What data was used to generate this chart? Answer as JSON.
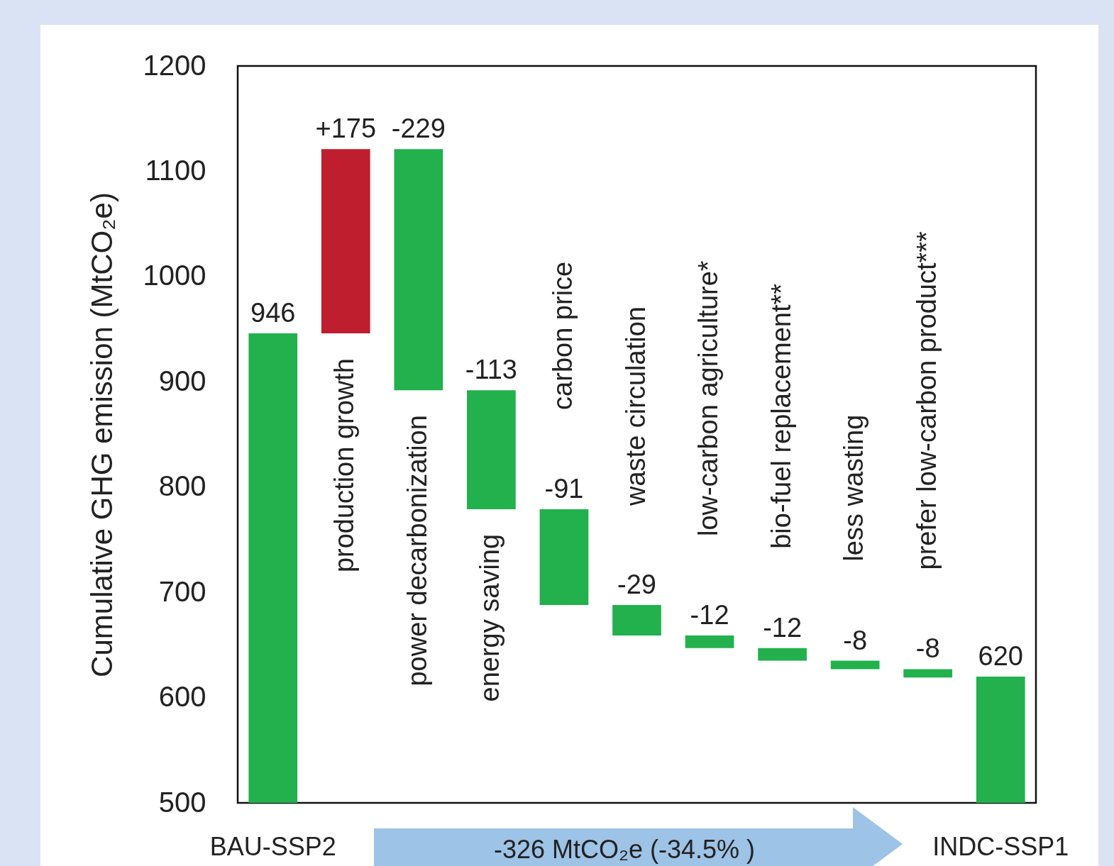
{
  "chart_data": {
    "type": "bar",
    "categories": [
      "BAU-SSP2",
      "production growth",
      "power decarbonization",
      "energy saving",
      "carbon price",
      "waste circulation",
      "low-carbon agriculture*",
      "bio-fuel replacement**",
      "less wasting",
      "prefer low-carbon product***",
      "INDC-SSP1"
    ],
    "values": [
      946,
      175,
      -229,
      -113,
      -91,
      -29,
      -12,
      -12,
      -8,
      -8,
      620
    ],
    "base": [
      null,
      946,
      1121,
      892,
      779,
      688,
      659,
      647,
      635,
      627,
      null
    ],
    "colors": [
      "#22b14c",
      "#be1e2d",
      "#22b14c",
      "#22b14c",
      "#22b14c",
      "#22b14c",
      "#22b14c",
      "#22b14c",
      "#22b14c",
      "#22b14c",
      "#22b14c"
    ],
    "value_labels": [
      "946",
      "+175",
      "-229",
      "-113",
      "-91",
      "-29",
      "-12",
      "-12",
      "-8",
      "-8",
      "620"
    ],
    "ylabel": "Cumulative GHG emission (MtCO₂e)",
    "ylim": [
      500,
      1200
    ],
    "yticks": [
      500,
      600,
      700,
      800,
      900,
      1000,
      1100,
      1200
    ],
    "annotations": [
      "-326 MtCO₂e (-34.5% )"
    ]
  }
}
